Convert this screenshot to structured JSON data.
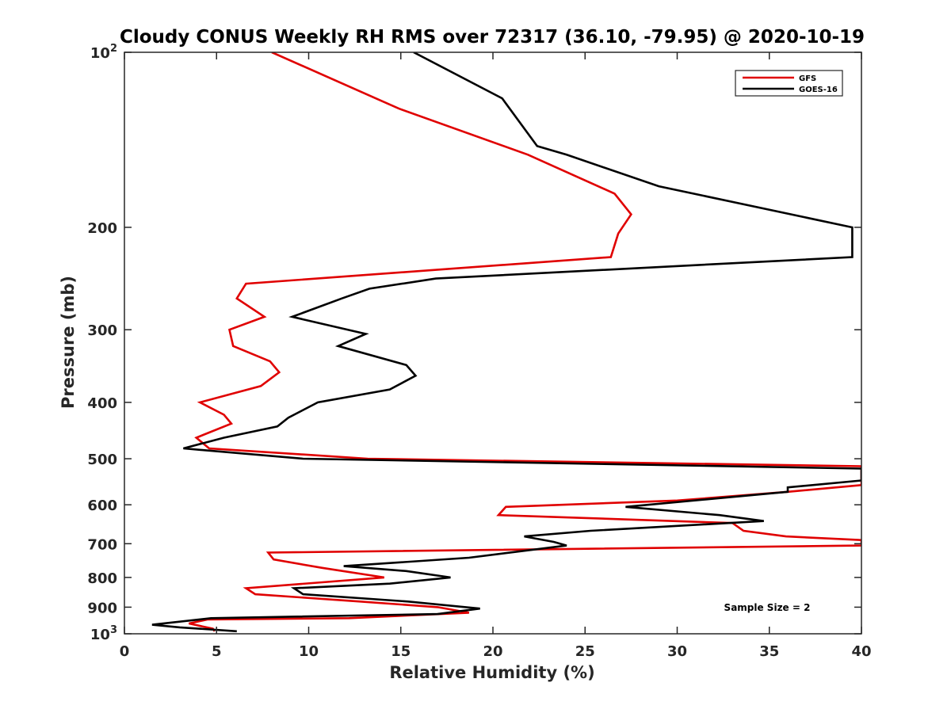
{
  "chart_data": {
    "type": "line",
    "title": "Cloudy CONUS Weekly RH RMS over 72317 (36.10, -79.95) @ 2020-10-19",
    "xlabel": "Relative Humidity (%)",
    "ylabel": "Pressure (mb)",
    "xlim": [
      0,
      40
    ],
    "ylim": [
      100,
      1000
    ],
    "y_scale": "log",
    "y_reversed": true,
    "grid": false,
    "legend_position": "top-right",
    "x_ticks": [
      0,
      5,
      10,
      15,
      20,
      25,
      30,
      35,
      40
    ],
    "x_tick_labels": [
      "0",
      "5",
      "10",
      "15",
      "20",
      "25",
      "30",
      "35",
      "40"
    ],
    "y_ticks": [
      100,
      200,
      300,
      400,
      500,
      600,
      700,
      800,
      900,
      1000
    ],
    "y_tick_labels": [
      {
        "value": 100,
        "base": "10",
        "exp": "2"
      },
      {
        "value": 200,
        "base": "200",
        "exp": ""
      },
      {
        "value": 300,
        "base": "300",
        "exp": ""
      },
      {
        "value": 400,
        "base": "400",
        "exp": ""
      },
      {
        "value": 500,
        "base": "500",
        "exp": ""
      },
      {
        "value": 600,
        "base": "600",
        "exp": ""
      },
      {
        "value": 700,
        "base": "700",
        "exp": ""
      },
      {
        "value": 800,
        "base": "800",
        "exp": ""
      },
      {
        "value": 900,
        "base": "900",
        "exp": ""
      },
      {
        "value": 1000,
        "base": "10",
        "exp": "3"
      }
    ],
    "annotation": "Sample Size = 2",
    "series": [
      {
        "name": "GFS",
        "color": "#e00000",
        "points": [
          [
            8.0,
            100
          ],
          [
            14.9,
            125
          ],
          [
            21.9,
            150
          ],
          [
            26.6,
            175
          ],
          [
            27.5,
            190
          ],
          [
            26.8,
            205
          ],
          [
            26.4,
            225
          ],
          [
            6.6,
            250
          ],
          [
            6.1,
            265
          ],
          [
            7.6,
            285
          ],
          [
            5.7,
            300
          ],
          [
            5.9,
            320
          ],
          [
            7.9,
            340
          ],
          [
            8.4,
            355
          ],
          [
            7.4,
            375
          ],
          [
            4.1,
            400
          ],
          [
            5.4,
            420
          ],
          [
            5.8,
            435
          ],
          [
            3.9,
            460
          ],
          [
            4.6,
            480
          ],
          [
            13.2,
            500
          ],
          [
            40.0,
            515
          ],
          [
            40.0,
            555
          ],
          [
            36.0,
            570
          ],
          [
            30.0,
            590
          ],
          [
            20.7,
            605
          ],
          [
            20.3,
            625
          ],
          [
            33.0,
            645
          ],
          [
            33.6,
            665
          ],
          [
            35.9,
            680
          ],
          [
            40.0,
            690
          ],
          [
            40.0,
            705
          ],
          [
            7.8,
            725
          ],
          [
            8.1,
            745
          ],
          [
            10.7,
            770
          ],
          [
            14.1,
            800
          ],
          [
            6.6,
            835
          ],
          [
            7.1,
            855
          ],
          [
            12.8,
            880
          ],
          [
            17.0,
            900
          ],
          [
            18.7,
            920
          ],
          [
            12.2,
            940
          ],
          [
            4.5,
            945
          ],
          [
            3.5,
            960
          ],
          [
            4.8,
            980
          ],
          [
            4.9,
            990
          ]
        ]
      },
      {
        "name": "GOES-16",
        "color": "#000000",
        "points": [
          [
            15.7,
            100
          ],
          [
            20.5,
            120
          ],
          [
            22.4,
            145
          ],
          [
            24.0,
            150
          ],
          [
            29.0,
            170
          ],
          [
            39.5,
            200
          ],
          [
            39.5,
            225
          ],
          [
            16.9,
            245
          ],
          [
            13.3,
            255
          ],
          [
            11.8,
            265
          ],
          [
            9.1,
            285
          ],
          [
            13.1,
            305
          ],
          [
            11.6,
            320
          ],
          [
            15.3,
            345
          ],
          [
            15.8,
            360
          ],
          [
            14.4,
            380
          ],
          [
            10.5,
            400
          ],
          [
            8.9,
            425
          ],
          [
            8.3,
            440
          ],
          [
            5.4,
            460
          ],
          [
            3.2,
            480
          ],
          [
            9.7,
            500
          ],
          [
            40.0,
            520
          ],
          [
            40.0,
            545
          ],
          [
            36.0,
            560
          ],
          [
            36.0,
            570
          ],
          [
            27.2,
            605
          ],
          [
            32.3,
            625
          ],
          [
            34.7,
            640
          ],
          [
            25.3,
            665
          ],
          [
            21.7,
            680
          ],
          [
            23.3,
            695
          ],
          [
            24.0,
            705
          ],
          [
            18.7,
            740
          ],
          [
            11.9,
            765
          ],
          [
            15.3,
            780
          ],
          [
            17.7,
            800
          ],
          [
            14.4,
            820
          ],
          [
            9.2,
            835
          ],
          [
            9.7,
            855
          ],
          [
            15.4,
            880
          ],
          [
            19.3,
            905
          ],
          [
            17.0,
            925
          ],
          [
            4.7,
            940
          ],
          [
            1.5,
            965
          ],
          [
            3.0,
            975
          ],
          [
            6.1,
            990
          ]
        ]
      }
    ]
  }
}
